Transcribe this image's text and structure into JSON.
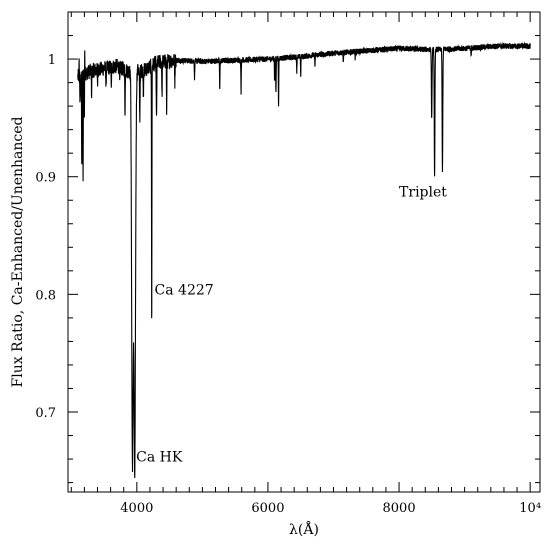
{
  "chart_data": {
    "type": "line",
    "title": "",
    "xlabel": "λ(Å)",
    "ylabel": "Flux Ratio, Ca-Enhanced/Unenhanced",
    "xlim": [
      2950,
      10150
    ],
    "ylim": [
      0.632,
      1.04
    ],
    "x_ticks": [
      {
        "value": 4000,
        "label": "4000"
      },
      {
        "value": 6000,
        "label": "6000"
      },
      {
        "value": 8000,
        "label": "8000"
      },
      {
        "value": 10000,
        "label": "10⁴"
      }
    ],
    "y_ticks": [
      {
        "value": 0.7,
        "label": "0.7"
      },
      {
        "value": 0.8,
        "label": "0.8"
      },
      {
        "value": 0.9,
        "label": "0.9"
      },
      {
        "value": 1.0,
        "label": "1"
      }
    ],
    "grid": false,
    "legend": "none",
    "series": [
      {
        "color": "#000000",
        "continuum": [
          [
            3100,
            0.985
          ],
          [
            3300,
            0.99
          ],
          [
            3500,
            0.992
          ],
          [
            3700,
            0.994
          ],
          [
            3850,
            0.99
          ],
          [
            4100,
            0.99
          ],
          [
            4300,
            0.997
          ],
          [
            4600,
            0.999
          ],
          [
            5000,
            0.998
          ],
          [
            5500,
            0.999
          ],
          [
            6000,
            1.0
          ],
          [
            6500,
            1.002
          ],
          [
            7000,
            1.005
          ],
          [
            7500,
            1.007
          ],
          [
            8000,
            1.009
          ],
          [
            8500,
            1.008
          ],
          [
            9000,
            1.009
          ],
          [
            9500,
            1.011
          ],
          [
            10000,
            1.011
          ]
        ],
        "absorption_lines": [
          {
            "x": 3135,
            "depth": 0.025,
            "width": 4
          },
          {
            "x": 3160,
            "depth": 0.08,
            "width": 3
          },
          {
            "x": 3180,
            "depth": 0.09,
            "width": 3
          },
          {
            "x": 3200,
            "depth": 0.04,
            "width": 3
          },
          {
            "x": 3310,
            "depth": 0.02,
            "width": 3
          },
          {
            "x": 3400,
            "depth": 0.015,
            "width": 3
          },
          {
            "x": 3530,
            "depth": 0.018,
            "width": 3
          },
          {
            "x": 3610,
            "depth": 0.02,
            "width": 3
          },
          {
            "x": 3740,
            "depth": 0.015,
            "width": 3
          },
          {
            "x": 3820,
            "depth": 0.04,
            "width": 3
          },
          {
            "x": 3933,
            "depth": 0.33,
            "width": 12
          },
          {
            "x": 3968,
            "depth": 0.34,
            "width": 12
          },
          {
            "x": 4045,
            "depth": 0.04,
            "width": 4
          },
          {
            "x": 4100,
            "depth": 0.02,
            "width": 3
          },
          {
            "x": 4227,
            "depth": 0.225,
            "width": 3
          },
          {
            "x": 4300,
            "depth": 0.05,
            "width": 4
          },
          {
            "x": 4384,
            "depth": 0.03,
            "width": 3
          },
          {
            "x": 4455,
            "depth": 0.045,
            "width": 3
          },
          {
            "x": 4580,
            "depth": 0.018,
            "width": 3
          },
          {
            "x": 4880,
            "depth": 0.015,
            "width": 3
          },
          {
            "x": 5265,
            "depth": 0.025,
            "width": 3
          },
          {
            "x": 5590,
            "depth": 0.028,
            "width": 3
          },
          {
            "x": 6102,
            "depth": 0.02,
            "width": 3
          },
          {
            "x": 6122,
            "depth": 0.03,
            "width": 3
          },
          {
            "x": 6162,
            "depth": 0.042,
            "width": 3
          },
          {
            "x": 6440,
            "depth": 0.012,
            "width": 3
          },
          {
            "x": 6500,
            "depth": 0.016,
            "width": 3
          },
          {
            "x": 6717,
            "depth": 0.01,
            "width": 3
          },
          {
            "x": 7150,
            "depth": 0.008,
            "width": 3
          },
          {
            "x": 7330,
            "depth": 0.006,
            "width": 3
          },
          {
            "x": 8498,
            "depth": 0.06,
            "width": 5
          },
          {
            "x": 8542,
            "depth": 0.11,
            "width": 5
          },
          {
            "x": 8662,
            "depth": 0.105,
            "width": 5
          },
          {
            "x": 9100,
            "depth": 0.006,
            "width": 3
          }
        ],
        "upward_spikes": [
          {
            "x": 3205,
            "height": 0.032,
            "width": 2
          },
          {
            "x": 3120,
            "height": 0.012,
            "width": 2
          },
          {
            "x": 3905,
            "height": 0.02,
            "width": 2
          }
        ],
        "noise_amplitude": 0.004,
        "samples": [
          [
            3100,
            0.973
          ],
          [
            3135,
            0.96
          ],
          [
            3160,
            0.905
          ],
          [
            3180,
            0.897
          ],
          [
            3205,
            1.022
          ],
          [
            3400,
            0.977
          ],
          [
            3820,
            0.95
          ],
          [
            3933,
            0.66
          ],
          [
            3950,
            0.76
          ],
          [
            3968,
            0.65
          ],
          [
            4045,
            0.95
          ],
          [
            4227,
            0.772
          ],
          [
            4300,
            0.947
          ],
          [
            4455,
            0.952
          ],
          [
            5265,
            0.974
          ],
          [
            5590,
            0.971
          ],
          [
            6162,
            0.958
          ],
          [
            7000,
            1.005
          ],
          [
            8498,
            0.948
          ],
          [
            8542,
            0.898
          ],
          [
            8662,
            0.904
          ],
          [
            10000,
            1.011
          ]
        ]
      }
    ],
    "annotations": [
      {
        "text": "Ca HK",
        "x": 3990,
        "y": 0.658
      },
      {
        "text": "Ca 4227",
        "x": 4270,
        "y": 0.8
      },
      {
        "text": "Triplet",
        "x": 8000,
        "y": 0.883
      }
    ]
  }
}
